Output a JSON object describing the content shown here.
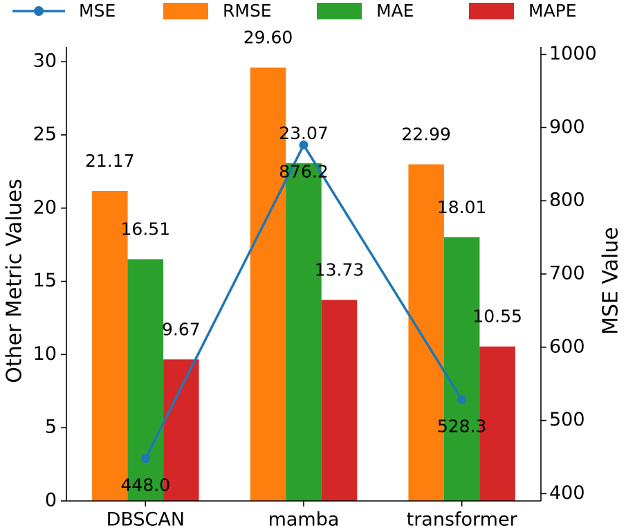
{
  "chart_data": {
    "type": "bar",
    "categories": [
      "DBSCAN",
      "mamba",
      "transformer"
    ],
    "series": [
      {
        "name": "RMSE",
        "color": "#ff7f0e",
        "values": [
          21.17,
          29.6,
          22.99
        ],
        "labels": [
          "21.17",
          "29.60",
          "22.99"
        ]
      },
      {
        "name": "MAE",
        "color": "#2ca02c",
        "values": [
          16.51,
          23.07,
          18.01
        ],
        "labels": [
          "16.51",
          "23.07",
          "18.01"
        ]
      },
      {
        "name": "MAPE",
        "color": "#d62728",
        "values": [
          9.67,
          13.73,
          10.55
        ],
        "labels": [
          "9.67",
          "13.73",
          "10.55"
        ]
      }
    ],
    "line_series": {
      "name": "MSE",
      "color": "#1f77b4",
      "values": [
        448.0,
        876.2,
        528.3
      ],
      "labels": [
        "448.0",
        "876.2",
        "528.3"
      ],
      "axis": "right"
    },
    "ylabel": "Other Metric Values",
    "y2label": "MSE Value",
    "ylim": [
      0,
      31
    ],
    "y2lim": [
      390,
      1010
    ],
    "yticks": [
      0,
      5,
      10,
      15,
      20,
      25,
      30
    ],
    "y2ticks": [
      400,
      500,
      600,
      700,
      800,
      900,
      1000
    ],
    "legend": [
      "MSE",
      "RMSE",
      "MAE",
      "MAPE"
    ],
    "legend_position": "top"
  }
}
